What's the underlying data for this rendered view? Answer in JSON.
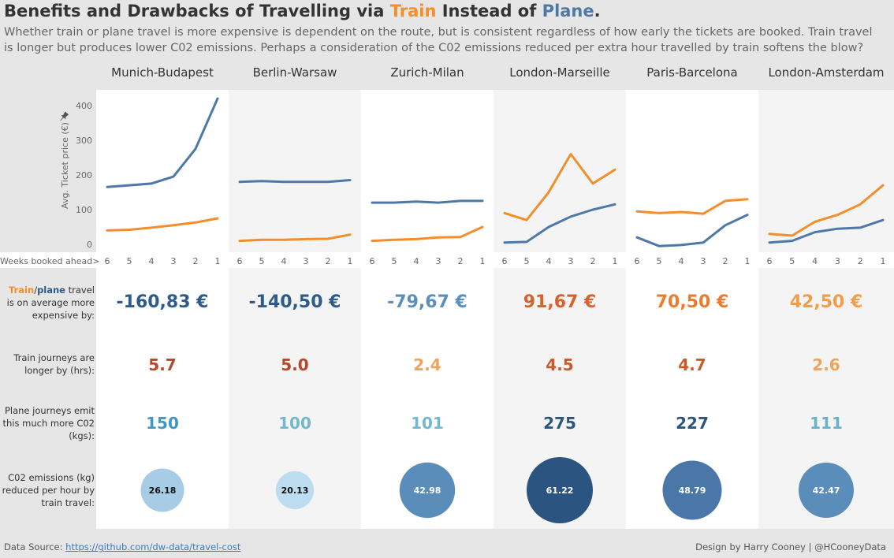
{
  "title": {
    "prefix": "Benefits and Drawbacks of Travelling via ",
    "train": "Train",
    "middle": " Instead of ",
    "plane": "Plane",
    "suffix": "."
  },
  "subtitle": "Whether train or plane travel is more expensive is dependent on the route, but is consistent regardless of how early the tickets are booked. Train travel is longer but produces lower C02 emissions. Perhaps a consideration of the C02 emissions reduced per extra hour travelled by train softens the blow?",
  "y_axis_label": "Avg. Ticket price (€)",
  "x_axis_caption": "Weeks booked ahead>",
  "row_labels": {
    "price_train": "Train",
    "price_sep": "/",
    "price_plane": "plane",
    "price_rest": " travel is on average more expensive by:",
    "longer": "Train journeys are longer by (hrs):",
    "emit": "Plane journeys emit this much more C02 (kgs):",
    "co2_per_hour": "C02 emissions (kg) reduced per hour by train travel:"
  },
  "colors": {
    "train": "#f28e2b",
    "plane": "#4e79a7"
  },
  "chart_data": {
    "type": "line",
    "xlabel": "Weeks booked ahead>",
    "ylabel": "Avg. Ticket price (€)",
    "ylim": [
      0,
      420
    ],
    "y_ticks": [
      0,
      100,
      200,
      300,
      400
    ],
    "x": [
      6,
      5,
      4,
      3,
      2,
      1
    ],
    "panels": [
      {
        "route": "Munich-Budapest",
        "series": [
          {
            "name": "Plane",
            "values": [
              165,
              170,
              175,
              195,
              275,
              420
            ]
          },
          {
            "name": "Train",
            "values": [
              40,
              42,
              48,
              55,
              63,
              75
            ]
          }
        ],
        "price_diff": "-160,83 €",
        "price_diff_color": "#2e5b8a",
        "longer_hrs": "5.7",
        "longer_color": "#b5472a",
        "extra_co2": "150",
        "extra_co2_color": "#3f98bf",
        "co2_per_hour": 26.18,
        "co2_per_hour_label": "26.18",
        "bubble_color": "#a7cce6",
        "bubble_text_color": "#111111"
      },
      {
        "route": "Berlin-Warsaw",
        "series": [
          {
            "name": "Plane",
            "values": [
              180,
              182,
              180,
              180,
              180,
              185
            ]
          },
          {
            "name": "Train",
            "values": [
              10,
              13,
              13,
              15,
              16,
              28
            ]
          }
        ],
        "price_diff": "-140,50 €",
        "price_diff_color": "#2e5b8a",
        "longer_hrs": "5.0",
        "longer_color": "#b5472a",
        "extra_co2": "100",
        "extra_co2_color": "#73b8cd",
        "co2_per_hour": 20.13,
        "co2_per_hour_label": "20.13",
        "bubble_color": "#bcdcef",
        "bubble_text_color": "#111111"
      },
      {
        "route": "Zurich-Milan",
        "series": [
          {
            "name": "Plane",
            "values": [
              120,
              120,
              123,
              120,
              125,
              125
            ]
          },
          {
            "name": "Train",
            "values": [
              10,
              13,
              15,
              20,
              21,
              50
            ]
          }
        ],
        "price_diff": "-79,67 €",
        "price_diff_color": "#5b8fbd",
        "longer_hrs": "2.4",
        "longer_color": "#f0a35a",
        "extra_co2": "101",
        "extra_co2_color": "#73b8cd",
        "co2_per_hour": 42.98,
        "co2_per_hour_label": "42.98",
        "bubble_color": "#5b8dbb",
        "bubble_text_color": "#ffffff"
      },
      {
        "route": "London-Marseille",
        "series": [
          {
            "name": "Plane",
            "values": [
              5,
              7,
              50,
              80,
              100,
              115
            ]
          },
          {
            "name": "Train",
            "values": [
              90,
              70,
              150,
              260,
              175,
              215
            ]
          }
        ],
        "price_diff": "91,67 €",
        "price_diff_color": "#d9612b",
        "longer_hrs": "4.5",
        "longer_color": "#c95a2b",
        "extra_co2": "275",
        "extra_co2_color": "#2b567f",
        "co2_per_hour": 61.22,
        "co2_per_hour_label": "61.22",
        "bubble_color": "#2b5580",
        "bubble_text_color": "#ffffff"
      },
      {
        "route": "Paris-Barcelona",
        "series": [
          {
            "name": "Plane",
            "values": [
              20,
              -5,
              -2,
              5,
              55,
              85
            ]
          },
          {
            "name": "Train",
            "values": [
              95,
              90,
              93,
              88,
              125,
              130
            ]
          }
        ],
        "price_diff": "70,50 €",
        "price_diff_color": "#ec7b2c",
        "longer_hrs": "4.7",
        "longer_color": "#c95a2b",
        "extra_co2": "227",
        "extra_co2_color": "#2b567f",
        "co2_per_hour": 48.79,
        "co2_per_hour_label": "48.79",
        "bubble_color": "#4a77a8",
        "bubble_text_color": "#ffffff"
      },
      {
        "route": "London-Amsterdam",
        "series": [
          {
            "name": "Plane",
            "values": [
              5,
              10,
              35,
              45,
              48,
              70
            ]
          },
          {
            "name": "Train",
            "values": [
              30,
              25,
              65,
              85,
              115,
              170
            ]
          }
        ],
        "price_diff": "42,50 €",
        "price_diff_color": "#f29d49",
        "longer_hrs": "2.6",
        "longer_color": "#f0a35a",
        "extra_co2": "111",
        "extra_co2_color": "#6ab2c6",
        "co2_per_hour": 42.47,
        "co2_per_hour_label": "42.47",
        "bubble_color": "#5b8dbb",
        "bubble_text_color": "#ffffff"
      }
    ]
  },
  "footer": {
    "source_label": "Data Source: ",
    "source_link": "https://github.com/dw-data/travel-cost",
    "credit": "Design by Harry Cooney | @HCooneyData"
  }
}
